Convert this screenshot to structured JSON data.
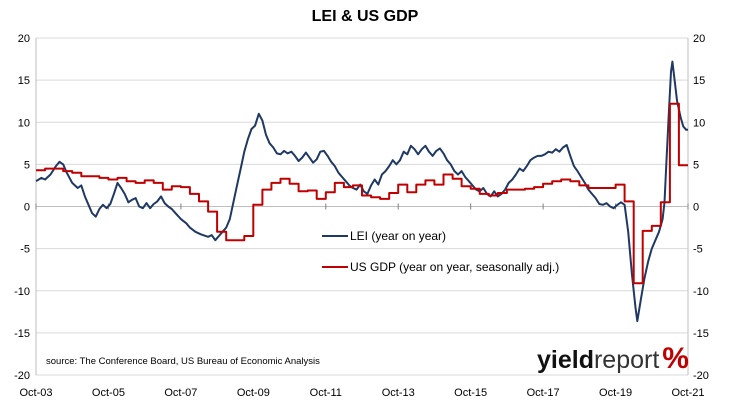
{
  "chart_data": {
    "type": "line",
    "title": "LEI & US GDP",
    "x_range": [
      2003.75,
      2021.75
    ],
    "ylim": [
      -20,
      20
    ],
    "y_ticks": [
      -20,
      -15,
      -10,
      -5,
      0,
      5,
      10,
      15,
      20
    ],
    "x_tick_labels": [
      "Oct-03",
      "Oct-05",
      "Oct-07",
      "Oct-09",
      "Oct-11",
      "Oct-13",
      "Oct-15",
      "Oct-17",
      "Oct-19",
      "Oct-21"
    ],
    "x_tick_values": [
      2003.75,
      2005.75,
      2007.75,
      2009.75,
      2011.75,
      2013.75,
      2015.75,
      2017.75,
      2019.75,
      2021.75
    ],
    "grid": true,
    "legend_position": "center",
    "source": "source: The Conference Board, US Bureau of Economic Analysis",
    "logo": {
      "part1": "yield",
      "part2": "report",
      "part3": "%"
    },
    "series": [
      {
        "name": "LEI (year on year)",
        "color": "#1f3864",
        "style": "line",
        "points": [
          [
            2003.75,
            3.0
          ],
          [
            2003.9,
            3.4
          ],
          [
            2004.0,
            3.2
          ],
          [
            2004.15,
            3.8
          ],
          [
            2004.3,
            4.8
          ],
          [
            2004.4,
            5.3
          ],
          [
            2004.5,
            5.0
          ],
          [
            2004.6,
            4.0
          ],
          [
            2004.75,
            2.8
          ],
          [
            2004.9,
            2.2
          ],
          [
            2005.0,
            2.5
          ],
          [
            2005.1,
            1.2
          ],
          [
            2005.2,
            0.2
          ],
          [
            2005.3,
            -0.8
          ],
          [
            2005.4,
            -1.2
          ],
          [
            2005.5,
            -0.3
          ],
          [
            2005.6,
            0.2
          ],
          [
            2005.7,
            -0.2
          ],
          [
            2005.8,
            0.3
          ],
          [
            2005.9,
            1.5
          ],
          [
            2006.0,
            2.8
          ],
          [
            2006.1,
            2.2
          ],
          [
            2006.2,
            1.5
          ],
          [
            2006.3,
            0.5
          ],
          [
            2006.4,
            0.8
          ],
          [
            2006.5,
            1.0
          ],
          [
            2006.6,
            0.0
          ],
          [
            2006.7,
            -0.2
          ],
          [
            2006.8,
            0.4
          ],
          [
            2006.9,
            -0.2
          ],
          [
            2007.0,
            0.3
          ],
          [
            2007.1,
            0.6
          ],
          [
            2007.2,
            1.2
          ],
          [
            2007.3,
            0.4
          ],
          [
            2007.4,
            0.0
          ],
          [
            2007.5,
            -0.3
          ],
          [
            2007.6,
            -0.8
          ],
          [
            2007.75,
            -1.5
          ],
          [
            2007.9,
            -2.0
          ],
          [
            2008.0,
            -2.5
          ],
          [
            2008.15,
            -3.0
          ],
          [
            2008.3,
            -3.3
          ],
          [
            2008.5,
            -3.6
          ],
          [
            2008.6,
            -3.4
          ],
          [
            2008.7,
            -4.0
          ],
          [
            2008.8,
            -3.5
          ],
          [
            2008.9,
            -3.0
          ],
          [
            2009.0,
            -2.5
          ],
          [
            2009.1,
            -1.5
          ],
          [
            2009.2,
            0.5
          ],
          [
            2009.3,
            2.5
          ],
          [
            2009.4,
            4.5
          ],
          [
            2009.5,
            6.5
          ],
          [
            2009.6,
            8.0
          ],
          [
            2009.7,
            9.2
          ],
          [
            2009.8,
            9.6
          ],
          [
            2009.9,
            11.0
          ],
          [
            2010.0,
            10.2
          ],
          [
            2010.1,
            8.5
          ],
          [
            2010.2,
            7.5
          ],
          [
            2010.3,
            7.0
          ],
          [
            2010.4,
            6.3
          ],
          [
            2010.5,
            6.2
          ],
          [
            2010.6,
            6.6
          ],
          [
            2010.7,
            6.3
          ],
          [
            2010.8,
            6.5
          ],
          [
            2010.9,
            6.0
          ],
          [
            2011.0,
            5.4
          ],
          [
            2011.1,
            5.8
          ],
          [
            2011.2,
            6.4
          ],
          [
            2011.3,
            5.8
          ],
          [
            2011.4,
            5.2
          ],
          [
            2011.5,
            5.6
          ],
          [
            2011.6,
            6.5
          ],
          [
            2011.7,
            6.6
          ],
          [
            2011.8,
            6.0
          ],
          [
            2011.9,
            5.3
          ],
          [
            2012.0,
            4.8
          ],
          [
            2012.1,
            4.0
          ],
          [
            2012.2,
            3.5
          ],
          [
            2012.3,
            3.0
          ],
          [
            2012.4,
            2.5
          ],
          [
            2012.5,
            2.2
          ],
          [
            2012.6,
            2.0
          ],
          [
            2012.7,
            2.6
          ],
          [
            2012.8,
            1.8
          ],
          [
            2012.9,
            1.5
          ],
          [
            2013.0,
            2.5
          ],
          [
            2013.1,
            3.2
          ],
          [
            2013.2,
            2.6
          ],
          [
            2013.3,
            3.8
          ],
          [
            2013.4,
            4.2
          ],
          [
            2013.5,
            4.8
          ],
          [
            2013.6,
            5.5
          ],
          [
            2013.7,
            5.0
          ],
          [
            2013.8,
            5.5
          ],
          [
            2013.9,
            6.5
          ],
          [
            2014.0,
            6.2
          ],
          [
            2014.1,
            7.2
          ],
          [
            2014.2,
            6.8
          ],
          [
            2014.3,
            6.2
          ],
          [
            2014.4,
            6.8
          ],
          [
            2014.5,
            7.2
          ],
          [
            2014.6,
            6.5
          ],
          [
            2014.7,
            6.0
          ],
          [
            2014.8,
            6.6
          ],
          [
            2014.9,
            6.9
          ],
          [
            2015.0,
            6.3
          ],
          [
            2015.1,
            5.5
          ],
          [
            2015.2,
            5.0
          ],
          [
            2015.3,
            4.2
          ],
          [
            2015.4,
            3.8
          ],
          [
            2015.5,
            4.2
          ],
          [
            2015.6,
            3.5
          ],
          [
            2015.7,
            3.0
          ],
          [
            2015.8,
            2.5
          ],
          [
            2015.9,
            2.0
          ],
          [
            2016.0,
            1.8
          ],
          [
            2016.1,
            2.2
          ],
          [
            2016.2,
            1.5
          ],
          [
            2016.3,
            1.2
          ],
          [
            2016.4,
            1.8
          ],
          [
            2016.5,
            1.2
          ],
          [
            2016.6,
            1.5
          ],
          [
            2016.7,
            2.0
          ],
          [
            2016.8,
            2.8
          ],
          [
            2016.9,
            3.2
          ],
          [
            2017.0,
            3.8
          ],
          [
            2017.1,
            4.5
          ],
          [
            2017.2,
            4.2
          ],
          [
            2017.3,
            4.8
          ],
          [
            2017.4,
            5.5
          ],
          [
            2017.5,
            5.8
          ],
          [
            2017.6,
            6.0
          ],
          [
            2017.7,
            6.0
          ],
          [
            2017.8,
            6.2
          ],
          [
            2017.9,
            6.5
          ],
          [
            2018.0,
            6.4
          ],
          [
            2018.1,
            6.8
          ],
          [
            2018.2,
            6.5
          ],
          [
            2018.3,
            7.0
          ],
          [
            2018.4,
            7.3
          ],
          [
            2018.5,
            6.0
          ],
          [
            2018.6,
            4.8
          ],
          [
            2018.7,
            4.2
          ],
          [
            2018.8,
            3.5
          ],
          [
            2018.9,
            2.8
          ],
          [
            2019.0,
            2.0
          ],
          [
            2019.1,
            1.5
          ],
          [
            2019.2,
            1.0
          ],
          [
            2019.3,
            0.3
          ],
          [
            2019.4,
            0.2
          ],
          [
            2019.5,
            0.4
          ],
          [
            2019.6,
            0.0
          ],
          [
            2019.7,
            -0.2
          ],
          [
            2019.8,
            0.2
          ],
          [
            2019.9,
            0.5
          ],
          [
            2020.0,
            0.2
          ],
          [
            2020.1,
            -3.0
          ],
          [
            2020.2,
            -8.0
          ],
          [
            2020.3,
            -12.0
          ],
          [
            2020.35,
            -13.6
          ],
          [
            2020.45,
            -11.0
          ],
          [
            2020.55,
            -8.5
          ],
          [
            2020.65,
            -6.5
          ],
          [
            2020.75,
            -5.0
          ],
          [
            2020.85,
            -4.0
          ],
          [
            2020.95,
            -3.0
          ],
          [
            2021.05,
            -1.5
          ],
          [
            2021.1,
            0.5
          ],
          [
            2021.15,
            5.0
          ],
          [
            2021.22,
            11.0
          ],
          [
            2021.28,
            16.0
          ],
          [
            2021.32,
            17.2
          ],
          [
            2021.38,
            15.0
          ],
          [
            2021.45,
            12.5
          ],
          [
            2021.55,
            10.5
          ],
          [
            2021.62,
            9.5
          ],
          [
            2021.7,
            9.1
          ],
          [
            2021.75,
            9.1
          ]
        ]
      },
      {
        "name": "US GDP (year on year, seasonally adj.)",
        "color": "#c00000",
        "style": "step",
        "points": [
          [
            2003.75,
            4.3
          ],
          [
            2004.0,
            4.5
          ],
          [
            2004.25,
            4.5
          ],
          [
            2004.5,
            4.2
          ],
          [
            2004.75,
            4.0
          ],
          [
            2005.0,
            3.6
          ],
          [
            2005.25,
            3.6
          ],
          [
            2005.5,
            3.4
          ],
          [
            2005.75,
            3.2
          ],
          [
            2006.0,
            3.4
          ],
          [
            2006.25,
            3.0
          ],
          [
            2006.5,
            2.8
          ],
          [
            2006.75,
            3.1
          ],
          [
            2007.0,
            2.8
          ],
          [
            2007.25,
            2.0
          ],
          [
            2007.5,
            2.4
          ],
          [
            2007.75,
            2.3
          ],
          [
            2008.0,
            1.5
          ],
          [
            2008.25,
            0.6
          ],
          [
            2008.5,
            -0.6
          ],
          [
            2008.75,
            -3.0
          ],
          [
            2009.0,
            -4.0
          ],
          [
            2009.25,
            -4.0
          ],
          [
            2009.5,
            -3.5
          ],
          [
            2009.75,
            0.2
          ],
          [
            2010.0,
            2.0
          ],
          [
            2010.25,
            2.8
          ],
          [
            2010.5,
            3.3
          ],
          [
            2010.75,
            2.7
          ],
          [
            2011.0,
            1.8
          ],
          [
            2011.25,
            1.9
          ],
          [
            2011.5,
            0.9
          ],
          [
            2011.75,
            1.7
          ],
          [
            2012.0,
            2.8
          ],
          [
            2012.25,
            2.3
          ],
          [
            2012.5,
            2.5
          ],
          [
            2012.75,
            1.3
          ],
          [
            2013.0,
            1.1
          ],
          [
            2013.25,
            0.9
          ],
          [
            2013.5,
            1.6
          ],
          [
            2013.75,
            2.6
          ],
          [
            2014.0,
            1.7
          ],
          [
            2014.25,
            2.6
          ],
          [
            2014.5,
            3.1
          ],
          [
            2014.75,
            2.6
          ],
          [
            2015.0,
            3.8
          ],
          [
            2015.25,
            3.3
          ],
          [
            2015.5,
            2.4
          ],
          [
            2015.75,
            2.1
          ],
          [
            2016.0,
            1.5
          ],
          [
            2016.25,
            1.3
          ],
          [
            2016.5,
            1.6
          ],
          [
            2016.75,
            2.0
          ],
          [
            2017.0,
            2.0
          ],
          [
            2017.25,
            2.1
          ],
          [
            2017.5,
            2.3
          ],
          [
            2017.75,
            2.7
          ],
          [
            2018.0,
            3.0
          ],
          [
            2018.25,
            3.2
          ],
          [
            2018.5,
            3.0
          ],
          [
            2018.75,
            2.5
          ],
          [
            2019.0,
            2.2
          ],
          [
            2019.25,
            2.2
          ],
          [
            2019.5,
            2.2
          ],
          [
            2019.75,
            2.6
          ],
          [
            2020.0,
            0.6
          ],
          [
            2020.25,
            -9.1
          ],
          [
            2020.5,
            -2.9
          ],
          [
            2020.75,
            -2.3
          ],
          [
            2021.0,
            0.5
          ],
          [
            2021.25,
            12.2
          ],
          [
            2021.5,
            4.9
          ],
          [
            2021.75,
            4.9
          ]
        ]
      }
    ]
  }
}
